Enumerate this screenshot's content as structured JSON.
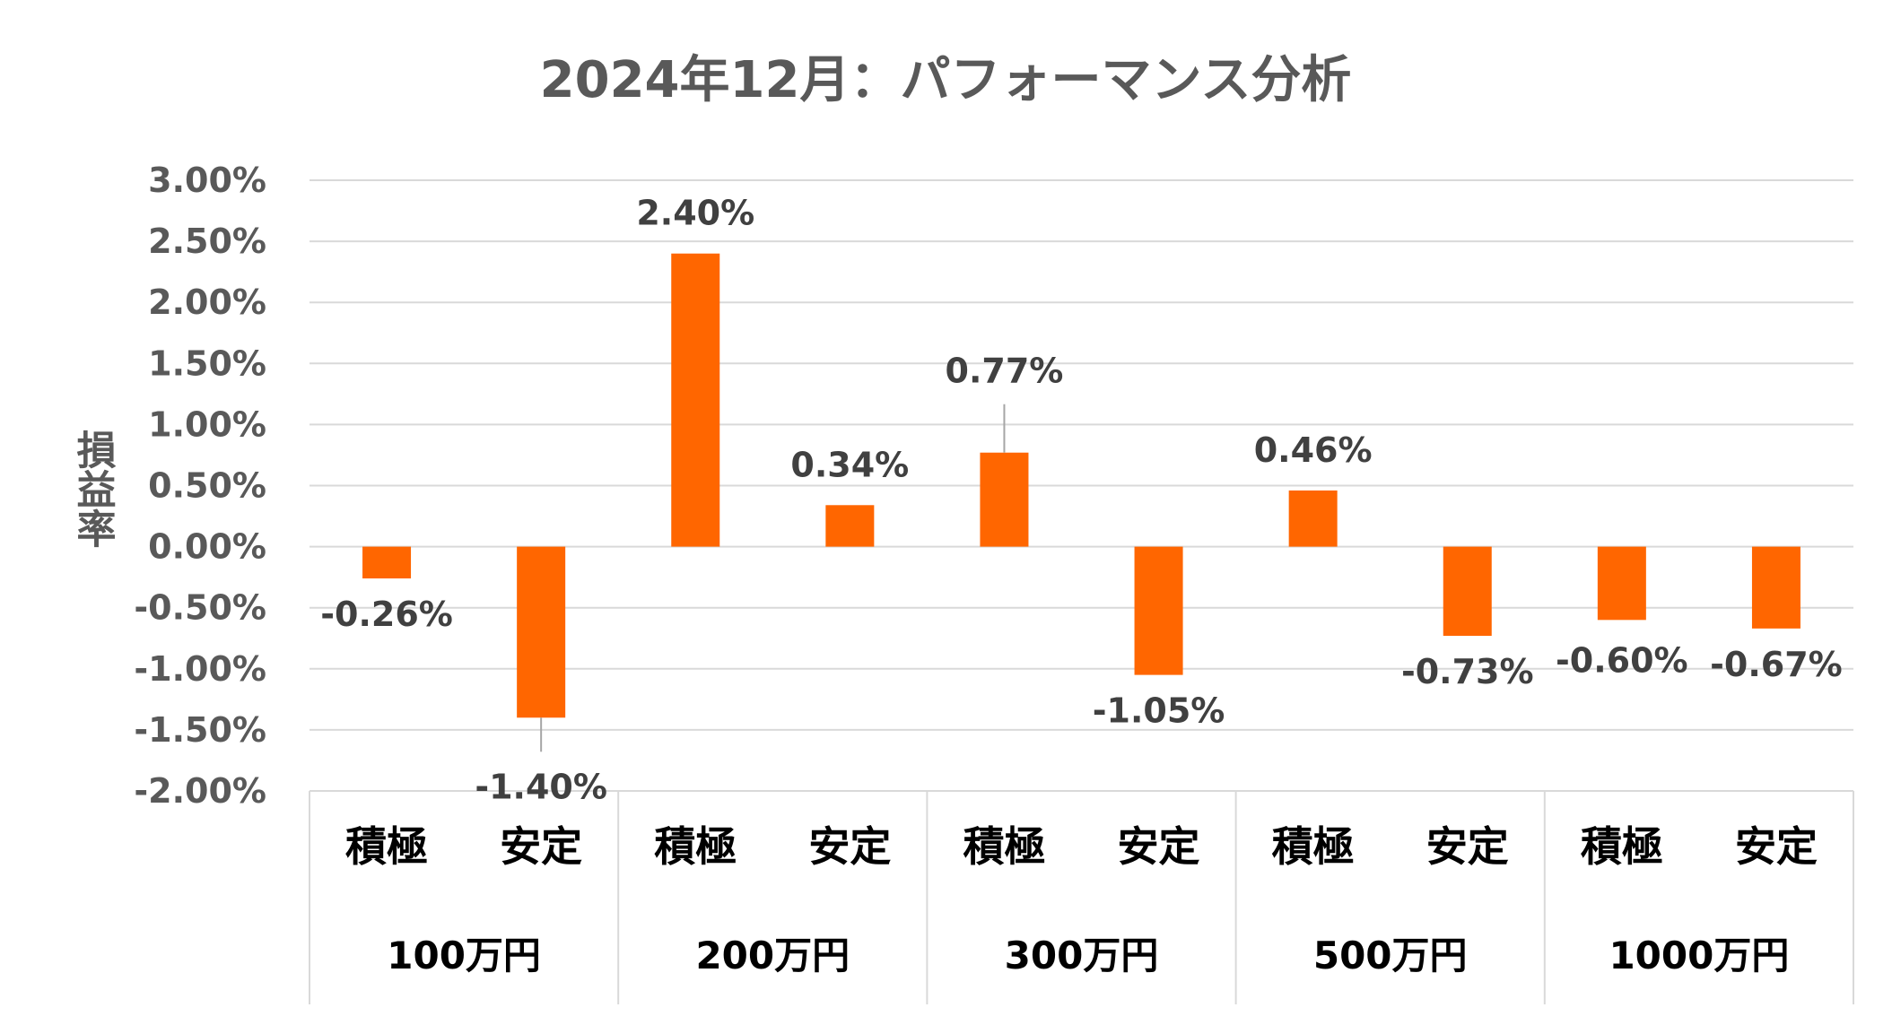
{
  "chart_data": {
    "type": "bar",
    "title": "2024年12月：パフォーマンス分析",
    "ylabel": "損益率",
    "xlabel": "",
    "ylim": [
      -0.02,
      0.03
    ],
    "ytick_values": [
      0.03,
      0.025,
      0.02,
      0.015,
      0.01,
      0.005,
      0.0,
      -0.005,
      -0.01,
      -0.015,
      -0.02
    ],
    "ytick_labels": [
      "3.00%",
      "2.50%",
      "2.00%",
      "1.50%",
      "1.00%",
      "0.50%",
      "0.00%",
      "-0.50%",
      "-1.00%",
      "-1.50%",
      "-2.00%"
    ],
    "grid": true,
    "legend": "none",
    "bar_color": "#FF6600",
    "groups": [
      "100万円",
      "200万円",
      "300万円",
      "500万円",
      "1000万円"
    ],
    "categories": [
      "積極",
      "安定",
      "積極",
      "安定",
      "積極",
      "安定",
      "積極",
      "安定",
      "積極",
      "安定"
    ],
    "values": [
      -0.0026,
      -0.014,
      0.024,
      0.0034,
      0.0077,
      -0.0105,
      0.0046,
      -0.0073,
      -0.006,
      -0.0067
    ],
    "data_labels": [
      "-0.26%",
      "-1.40%",
      "2.40%",
      "0.34%",
      "0.77%",
      "-1.05%",
      "0.46%",
      "-0.73%",
      "-0.60%",
      "-0.67%"
    ]
  }
}
